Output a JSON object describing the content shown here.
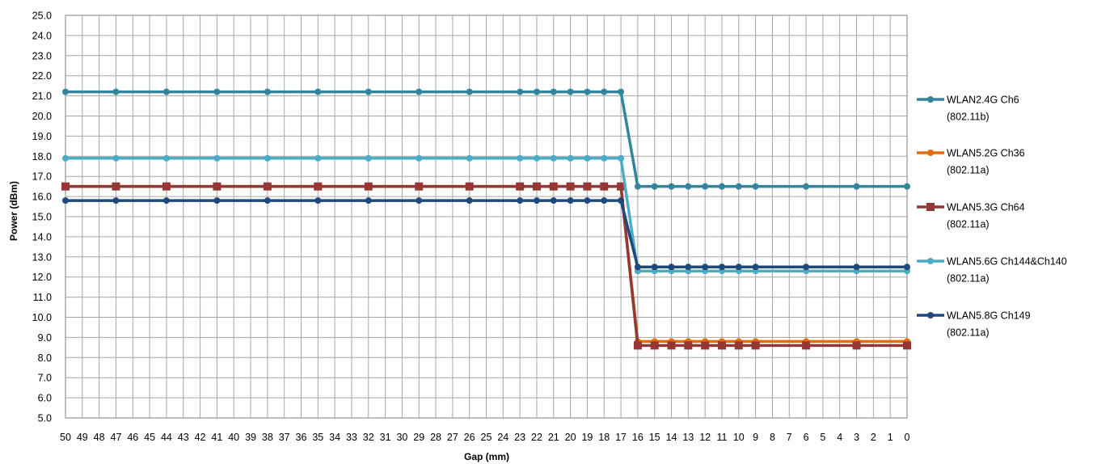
{
  "chart_data": {
    "type": "line",
    "xlabel": "Gap (mm)",
    "ylabel": "Power (dBm)",
    "ylim": [
      5.0,
      25.0
    ],
    "yticks": [
      "5.0",
      "6.0",
      "7.0",
      "8.0",
      "9.0",
      "10.0",
      "11.0",
      "12.0",
      "13.0",
      "14.0",
      "15.0",
      "16.0",
      "17.0",
      "18.0",
      "19.0",
      "20.0",
      "21.0",
      "22.0",
      "23.0",
      "24.0",
      "25.0"
    ],
    "xticks": [
      "50",
      "49",
      "48",
      "47",
      "46",
      "45",
      "44",
      "43",
      "42",
      "41",
      "40",
      "39",
      "38",
      "37",
      "36",
      "35",
      "34",
      "33",
      "32",
      "31",
      "30",
      "29",
      "28",
      "27",
      "26",
      "25",
      "24",
      "23",
      "22",
      "21",
      "20",
      "19",
      "18",
      "17",
      "16",
      "15",
      "14",
      "13",
      "12",
      "11",
      "10",
      "9",
      "8",
      "7",
      "6",
      "5",
      "4",
      "3",
      "2",
      "1",
      "0"
    ],
    "x_reversed": true,
    "grid": true,
    "legend_position": "right",
    "x": [
      50,
      47,
      44,
      41,
      38,
      35,
      32,
      29,
      26,
      23,
      22,
      21,
      20,
      19,
      18,
      17,
      16,
      15,
      14,
      13,
      12,
      11,
      10,
      9,
      6,
      3,
      0
    ],
    "series": [
      {
        "legend": [
          "WLAN2.4G Ch6",
          "(802.11b)"
        ],
        "color": "#31859c",
        "marker": "circle",
        "values": [
          21.2,
          21.2,
          21.2,
          21.2,
          21.2,
          21.2,
          21.2,
          21.2,
          21.2,
          21.2,
          21.2,
          21.2,
          21.2,
          21.2,
          21.2,
          21.2,
          16.5,
          16.5,
          16.5,
          16.5,
          16.5,
          16.5,
          16.5,
          16.5,
          16.5,
          16.5,
          16.5
        ]
      },
      {
        "legend": [
          "WLAN5.2G Ch36",
          "(802.11a)"
        ],
        "color": "#e46c0a",
        "marker": "circle",
        "values": [
          16.5,
          16.5,
          16.5,
          16.5,
          16.5,
          16.5,
          16.5,
          16.5,
          16.5,
          16.5,
          16.5,
          16.5,
          16.5,
          16.5,
          16.5,
          16.5,
          8.8,
          8.8,
          8.8,
          8.8,
          8.8,
          8.8,
          8.8,
          8.8,
          8.8,
          8.8,
          8.8
        ]
      },
      {
        "legend": [
          "WLAN5.3G Ch64",
          "(802.11a)"
        ],
        "color": "#953735",
        "marker": "square",
        "values": [
          16.5,
          16.5,
          16.5,
          16.5,
          16.5,
          16.5,
          16.5,
          16.5,
          16.5,
          16.5,
          16.5,
          16.5,
          16.5,
          16.5,
          16.5,
          16.5,
          8.6,
          8.6,
          8.6,
          8.6,
          8.6,
          8.6,
          8.6,
          8.6,
          8.6,
          8.6,
          8.6
        ]
      },
      {
        "legend": [
          "WLAN5.6G Ch144&Ch140",
          "(802.11a)"
        ],
        "color": "#4bacc6",
        "marker": "circle",
        "values": [
          17.9,
          17.9,
          17.9,
          17.9,
          17.9,
          17.9,
          17.9,
          17.9,
          17.9,
          17.9,
          17.9,
          17.9,
          17.9,
          17.9,
          17.9,
          17.9,
          12.3,
          12.3,
          12.3,
          12.3,
          12.3,
          12.3,
          12.3,
          12.3,
          12.3,
          12.3,
          12.3
        ]
      },
      {
        "legend": [
          "WLAN5.8G Ch149",
          "(802.11a)"
        ],
        "color": "#1f497d",
        "marker": "circle",
        "values": [
          15.8,
          15.8,
          15.8,
          15.8,
          15.8,
          15.8,
          15.8,
          15.8,
          15.8,
          15.8,
          15.8,
          15.8,
          15.8,
          15.8,
          15.8,
          15.8,
          12.5,
          12.5,
          12.5,
          12.5,
          12.5,
          12.5,
          12.5,
          12.5,
          12.5,
          12.5,
          12.5
        ]
      }
    ]
  }
}
